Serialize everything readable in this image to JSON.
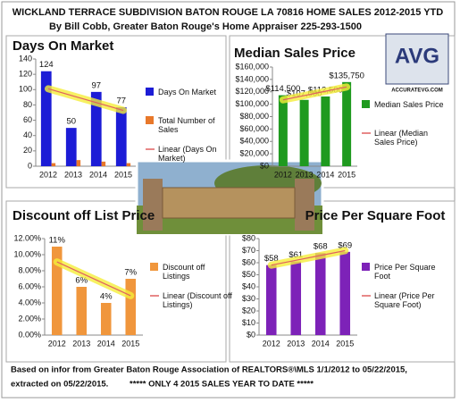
{
  "header": {
    "title": "WICKLAND TERRACE SUBDIVISION BATON ROUGE LA 70816 HOME SALES 2012-2015 YTD",
    "subtitle": "By Bill Cobb, Greater Baton Rouge's Home Appraiser 225-293-1500"
  },
  "logo": {
    "initials": "AVG",
    "url": "ACCURATEVG.COM"
  },
  "footer": {
    "source": "Based on infor from Greater Baton Rouge Association of REALTORS®\\MLS 1/1/2012 to 05/22/2015,",
    "note": "extracted on 05/22/2015.",
    "alert": "***** ONLY 4 2015 SALES YEAR TO DATE *****"
  },
  "chart_data": [
    {
      "type": "bar",
      "title": "Days On Market",
      "categories": [
        "2012",
        "2013",
        "2014",
        "2015"
      ],
      "ylim": [
        0,
        140
      ],
      "yticks": [
        0,
        20,
        40,
        60,
        80,
        100,
        120,
        140
      ],
      "series": [
        {
          "name": "Days On Market",
          "type": "bar",
          "color": "#1c1cd6",
          "values": [
            124,
            50,
            97,
            77
          ],
          "data_labels": true
        },
        {
          "name": "Total Number of Sales",
          "type": "bar",
          "color": "#e8782a",
          "values": [
            4,
            8,
            6,
            4
          ]
        },
        {
          "name": "Linear (Days On Market)",
          "type": "line",
          "color": "#e06060",
          "values": [
            101.1,
            91.7,
            82.3,
            72.9
          ]
        }
      ]
    },
    {
      "type": "bar",
      "title": "Median Sales Price",
      "categories": [
        "2012",
        "2013",
        "2014",
        "2015"
      ],
      "ylim": [
        0,
        160000
      ],
      "yticks": [
        {
          "value": 0,
          "label": "$0"
        },
        {
          "value": 20000,
          "label": "$20,000"
        },
        {
          "value": 40000,
          "label": "$40,000"
        },
        {
          "value": 60000,
          "label": "$60,000"
        },
        {
          "value": 80000,
          "label": "$80,000"
        },
        {
          "value": 100000,
          "label": "$100,000"
        },
        {
          "value": 120000,
          "label": "$120,000"
        },
        {
          "value": 140000,
          "label": "$140,000"
        },
        {
          "value": 160000,
          "label": "$160,000"
        }
      ],
      "series": [
        {
          "name": "Median Sales Price",
          "type": "bar",
          "color": "#1f9a1f",
          "values": [
            114500,
            107000,
            112500,
            135750
          ],
          "value_labels": [
            "$114,500",
            "$107,000",
            "$112,500",
            "$135,750"
          ]
        },
        {
          "name": "Linear (Median Sales Price)",
          "type": "line",
          "color": "#e06060",
          "values": [
            107050,
            113975,
            120900,
            127825
          ]
        }
      ]
    },
    {
      "type": "bar",
      "title": "Discount off List Price",
      "categories": [
        "2012",
        "2013",
        "2014",
        "2015"
      ],
      "ylim": [
        0,
        12
      ],
      "yticks": [
        {
          "value": 0,
          "label": "0.00%"
        },
        {
          "value": 2,
          "label": "2.00%"
        },
        {
          "value": 4,
          "label": "4.00%"
        },
        {
          "value": 6,
          "label": "6.00%"
        },
        {
          "value": 8,
          "label": "8.00%"
        },
        {
          "value": 10,
          "label": "10.00%"
        },
        {
          "value": 12,
          "label": "12.00%"
        }
      ],
      "series": [
        {
          "name": "Discount off Listings",
          "type": "bar",
          "color": "#f0963c",
          "values": [
            11,
            6,
            4,
            7
          ],
          "value_labels": [
            "11%",
            "6%",
            "4%",
            "7%"
          ]
        },
        {
          "name": "Linear (Discount off Listings)",
          "type": "line",
          "color": "#e06060",
          "values": [
            9.1,
            7.7,
            6.3,
            4.9
          ]
        }
      ]
    },
    {
      "type": "bar",
      "title": "Price Per Square Foot",
      "categories": [
        "2012",
        "2013",
        "2014",
        "2015"
      ],
      "ylim": [
        0,
        80
      ],
      "yticks": [
        {
          "value": 0,
          "label": "$0"
        },
        {
          "value": 10,
          "label": "$10"
        },
        {
          "value": 20,
          "label": "$20"
        },
        {
          "value": 30,
          "label": "$30"
        },
        {
          "value": 40,
          "label": "$40"
        },
        {
          "value": 50,
          "label": "$50"
        },
        {
          "value": 60,
          "label": "$60"
        },
        {
          "value": 70,
          "label": "$70"
        },
        {
          "value": 80,
          "label": "$80"
        }
      ],
      "series": [
        {
          "name": "Price Per Square Foot",
          "type": "bar",
          "color": "#7d22b8",
          "values": [
            58,
            61,
            68,
            69
          ],
          "value_labels": [
            "$58",
            "$61",
            "$68",
            "$69"
          ]
        },
        {
          "name": "Linear (Price Per Square Foot)",
          "type": "line",
          "color": "#e06060",
          "values": [
            58,
            62,
            66,
            70
          ]
        }
      ]
    }
  ]
}
